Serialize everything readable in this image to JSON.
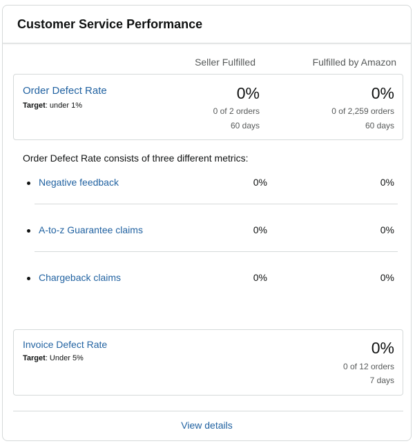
{
  "header": {
    "title": "Customer Service Performance"
  },
  "columns": {
    "seller_fulfilled": "Seller Fulfilled",
    "fba": "Fulfilled by Amazon"
  },
  "order_defect_rate": {
    "label": "Order Defect Rate",
    "target_label": "Target",
    "target_value": ": under 1%",
    "seller_fulfilled": {
      "percent": "0%",
      "orders": "0 of 2 orders",
      "period": "60 days"
    },
    "fba": {
      "percent": "0%",
      "orders": "0 of 2,259 orders",
      "period": "60 days"
    }
  },
  "consists_text": "Order Defect Rate consists of three different metrics:",
  "sub_metrics": [
    {
      "label": "Negative feedback",
      "seller_fulfilled": "0%",
      "fba": "0%"
    },
    {
      "label": "A-to-z Guarantee claims",
      "seller_fulfilled": "0%",
      "fba": "0%"
    },
    {
      "label": "Chargeback claims",
      "seller_fulfilled": "0%",
      "fba": "0%"
    }
  ],
  "invoice_defect_rate": {
    "label": "Invoice Defect Rate",
    "target_label": "Target",
    "target_value": ": Under 5%",
    "percent": "0%",
    "orders": "0 of 12 orders",
    "period": "7 days"
  },
  "footer": {
    "view_details": "View details"
  },
  "colors": {
    "link": "#2162a1",
    "text": "#0f1111",
    "muted": "#565959",
    "border": "#d5d9d9"
  }
}
